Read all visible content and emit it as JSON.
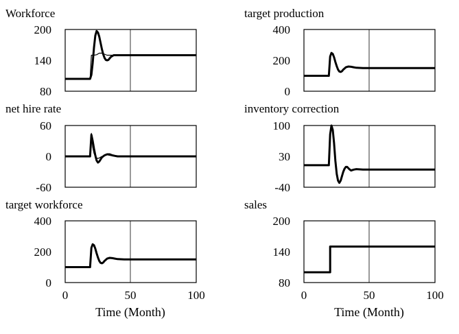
{
  "chart_data": [
    {
      "type": "line",
      "title": "Workforce",
      "xlim": [
        0,
        100
      ],
      "ylim": [
        80,
        200
      ],
      "yticks": [
        "200",
        "140",
        "80"
      ],
      "xticks": [],
      "xlabel": "",
      "series": [
        {
          "name": "Workforce",
          "style": "thick",
          "x": [
            0,
            19,
            20,
            21,
            22,
            23,
            24,
            25,
            26,
            27,
            28,
            29,
            30,
            31,
            32,
            33,
            34,
            35,
            37,
            40,
            100
          ],
          "y": [
            104,
            104,
            112,
            135,
            165,
            188,
            197,
            194,
            186,
            174,
            162,
            152,
            145,
            141,
            140,
            141,
            144,
            147,
            150,
            150,
            150
          ]
        },
        {
          "name": "Workforce (comparison)",
          "style": "thin",
          "x": [
            0,
            19,
            20,
            22,
            24,
            26,
            28,
            30,
            32,
            34,
            36,
            38,
            40,
            100
          ],
          "y": [
            104,
            104,
            150,
            150,
            151,
            154,
            154,
            152,
            150,
            150,
            150,
            150,
            150,
            150
          ]
        }
      ]
    },
    {
      "type": "line",
      "title": "target production",
      "xlim": [
        0,
        100
      ],
      "ylim": [
        0,
        400
      ],
      "yticks": [
        "400",
        "200",
        "0"
      ],
      "xticks": [],
      "xlabel": "",
      "series": [
        {
          "name": "target production",
          "style": "thick",
          "x": [
            0,
            19,
            20,
            21,
            22,
            23,
            24,
            25,
            26,
            27,
            28,
            29,
            30,
            32,
            34,
            36,
            38,
            40,
            45,
            100
          ],
          "y": [
            100,
            100,
            225,
            248,
            242,
            220,
            190,
            162,
            140,
            128,
            125,
            130,
            140,
            155,
            160,
            158,
            155,
            152,
            150,
            150
          ]
        }
      ]
    },
    {
      "type": "line",
      "title": "net hire rate",
      "xlim": [
        0,
        100
      ],
      "ylim": [
        -60,
        60
      ],
      "yticks": [
        "60",
        "0",
        "-60"
      ],
      "xticks": [],
      "xlabel": "",
      "series": [
        {
          "name": "net hire rate",
          "style": "thick",
          "x": [
            0,
            19,
            20,
            21,
            22,
            23,
            24,
            25,
            26,
            27,
            28,
            30,
            32,
            34,
            36,
            38,
            40,
            45,
            100
          ],
          "y": [
            0,
            0,
            42,
            30,
            15,
            2,
            -8,
            -12,
            -10,
            -6,
            -2,
            2,
            4,
            4,
            2,
            1,
            0,
            0,
            0
          ]
        },
        {
          "name": "net hire rate (comparison)",
          "style": "thin",
          "x": [
            0,
            19,
            20,
            21,
            22,
            23,
            24,
            25,
            26,
            28,
            30,
            32,
            34,
            36,
            40,
            100
          ],
          "y": [
            0,
            0,
            45,
            18,
            6,
            0,
            -3,
            -4,
            -3,
            0,
            2,
            3,
            2,
            1,
            0,
            0
          ]
        }
      ]
    },
    {
      "type": "line",
      "title": "inventory correction",
      "xlim": [
        0,
        100
      ],
      "ylim": [
        -40,
        100
      ],
      "yticks": [
        "100",
        "30",
        "-40"
      ],
      "xticks": [],
      "xlabel": "",
      "series": [
        {
          "name": "inventory correction",
          "style": "thick",
          "x": [
            0,
            19,
            20,
            21,
            22,
            23,
            24,
            25,
            26,
            27,
            28,
            29,
            30,
            31,
            32,
            33,
            34,
            35,
            36,
            38,
            40,
            45,
            100
          ],
          "y": [
            10,
            10,
            80,
            100,
            90,
            60,
            20,
            -10,
            -25,
            -30,
            -25,
            -15,
            -5,
            2,
            6,
            6,
            3,
            0,
            -2,
            0,
            1,
            0,
            0
          ]
        }
      ]
    },
    {
      "type": "line",
      "title": "target workforce",
      "xlim": [
        0,
        100
      ],
      "ylim": [
        0,
        400
      ],
      "yticks": [
        "400",
        "200",
        "0"
      ],
      "xticks": [
        "0",
        "50",
        "100"
      ],
      "xlabel": "Time (Month)",
      "series": [
        {
          "name": "target workforce",
          "style": "thick",
          "x": [
            0,
            19,
            20,
            21,
            22,
            23,
            24,
            25,
            26,
            27,
            28,
            29,
            30,
            32,
            34,
            36,
            38,
            40,
            45,
            100
          ],
          "y": [
            100,
            100,
            225,
            248,
            242,
            220,
            190,
            162,
            140,
            128,
            125,
            130,
            140,
            155,
            160,
            158,
            155,
            152,
            150,
            150
          ]
        }
      ]
    },
    {
      "type": "line",
      "title": "sales",
      "xlim": [
        0,
        100
      ],
      "ylim": [
        80,
        200
      ],
      "yticks": [
        "200",
        "140",
        "80"
      ],
      "xticks": [
        "0",
        "50",
        "100"
      ],
      "xlabel": "Time (Month)",
      "series": [
        {
          "name": "sales",
          "style": "thick",
          "x": [
            0,
            20,
            20,
            100
          ],
          "y": [
            100,
            100,
            150,
            150
          ]
        }
      ]
    }
  ]
}
